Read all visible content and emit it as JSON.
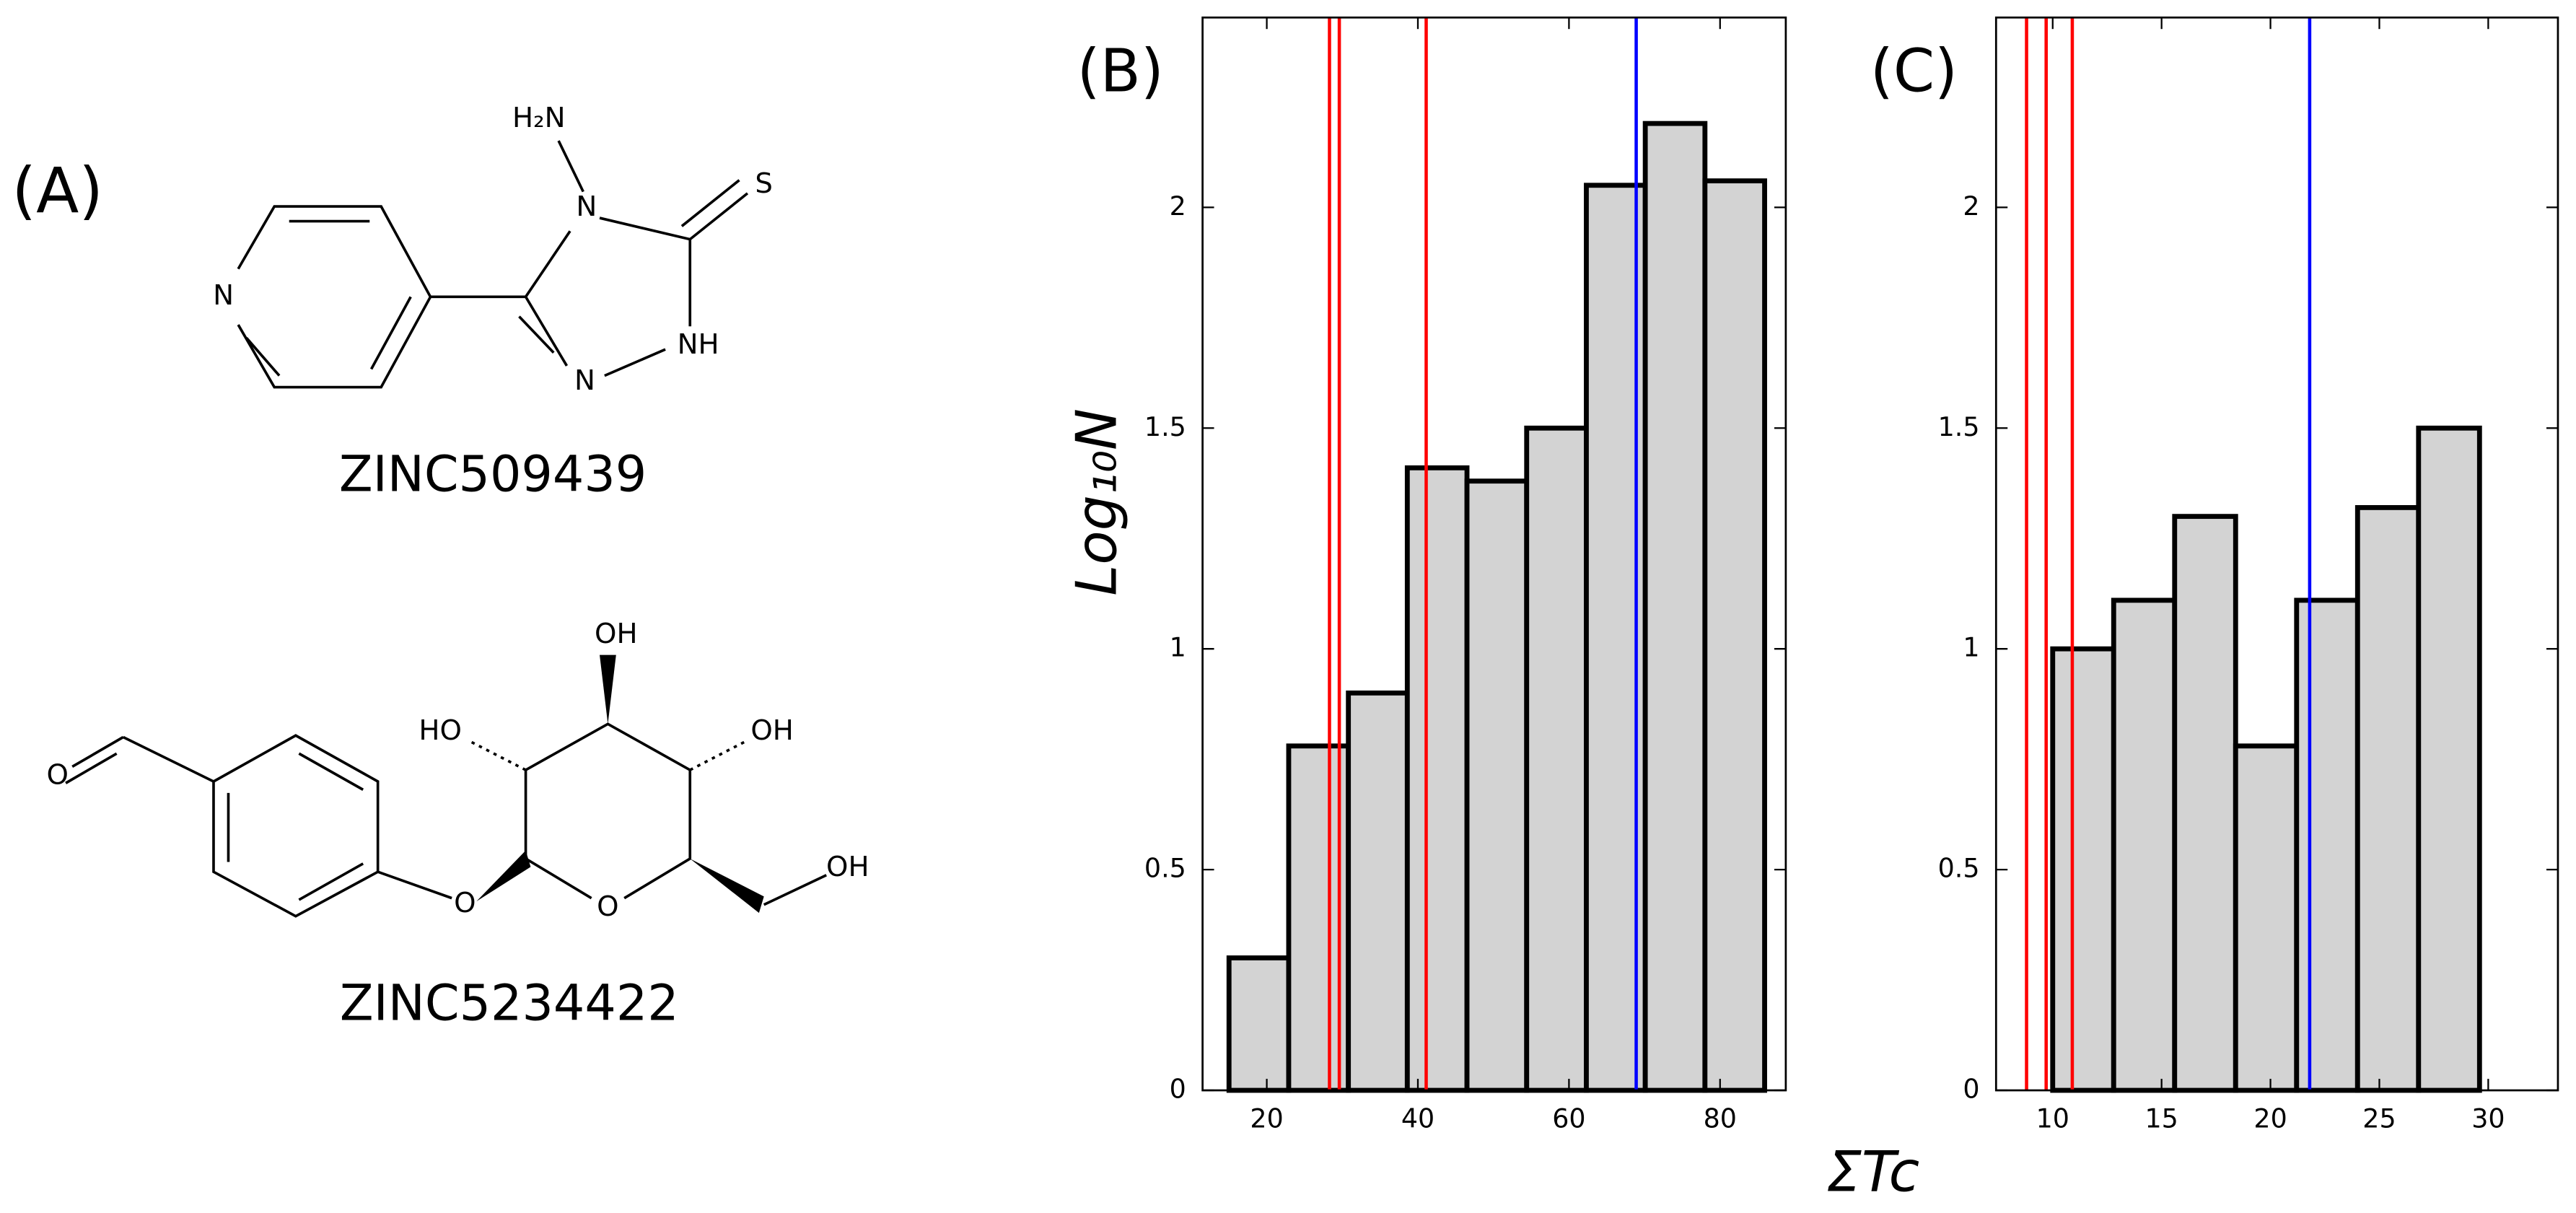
{
  "panel_a": {
    "label": "(A)",
    "molecules": [
      {
        "name": "ZINC509439",
        "atoms": [
          "H₂N",
          "N",
          "S",
          "N",
          "NH",
          "N"
        ]
      },
      {
        "name": "ZINC5234422",
        "atoms": [
          "O",
          "O",
          "HO",
          "OH",
          "OH",
          "O",
          "OH"
        ]
      }
    ]
  },
  "chart_data": [
    {
      "type": "histogram",
      "panel_label": "(B)",
      "ylabel": "Log₁₀N",
      "bins": [
        15,
        22.9,
        30.8,
        38.6,
        46.5,
        54.4,
        62.3,
        70.1,
        78,
        85.9
      ],
      "values": [
        0.3,
        0.78,
        0.9,
        1.41,
        1.38,
        1.5,
        2.05,
        2.19,
        2.06
      ],
      "color": "#d3d3d3",
      "edgecolor": "#000000",
      "xlim": [
        11.5,
        88.7
      ],
      "ylim": [
        0,
        2.43
      ],
      "xticks": [
        20,
        40,
        60,
        80
      ],
      "yticks": [
        0,
        0.5,
        1,
        1.5,
        2
      ],
      "vlines": [
        {
          "x": 28.3,
          "color": "#ff0000"
        },
        {
          "x": 29.6,
          "color": "#ff0000"
        },
        {
          "x": 41.1,
          "color": "#ff0000"
        },
        {
          "x": 68.9,
          "color": "#0000ff"
        }
      ]
    },
    {
      "type": "histogram",
      "panel_label": "(C)",
      "xlabel": "ΣTc",
      "bins": [
        10,
        12.8,
        15.6,
        18.4,
        21.2,
        24,
        26.8,
        29.6
      ],
      "values": [
        1.0,
        1.11,
        1.3,
        0.78,
        1.11,
        1.32,
        1.5
      ],
      "color": "#d3d3d3",
      "edgecolor": "#000000",
      "xlim": [
        7.4,
        33.2
      ],
      "ylim": [
        0,
        2.43
      ],
      "xticks": [
        10,
        15,
        20,
        25,
        30
      ],
      "yticks": [
        0,
        0.5,
        1,
        1.5,
        2
      ],
      "vlines": [
        {
          "x": 8.8,
          "color": "#ff0000"
        },
        {
          "x": 9.7,
          "color": "#ff0000"
        },
        {
          "x": 10.9,
          "color": "#ff0000"
        },
        {
          "x": 21.8,
          "color": "#0000ff"
        }
      ]
    }
  ]
}
